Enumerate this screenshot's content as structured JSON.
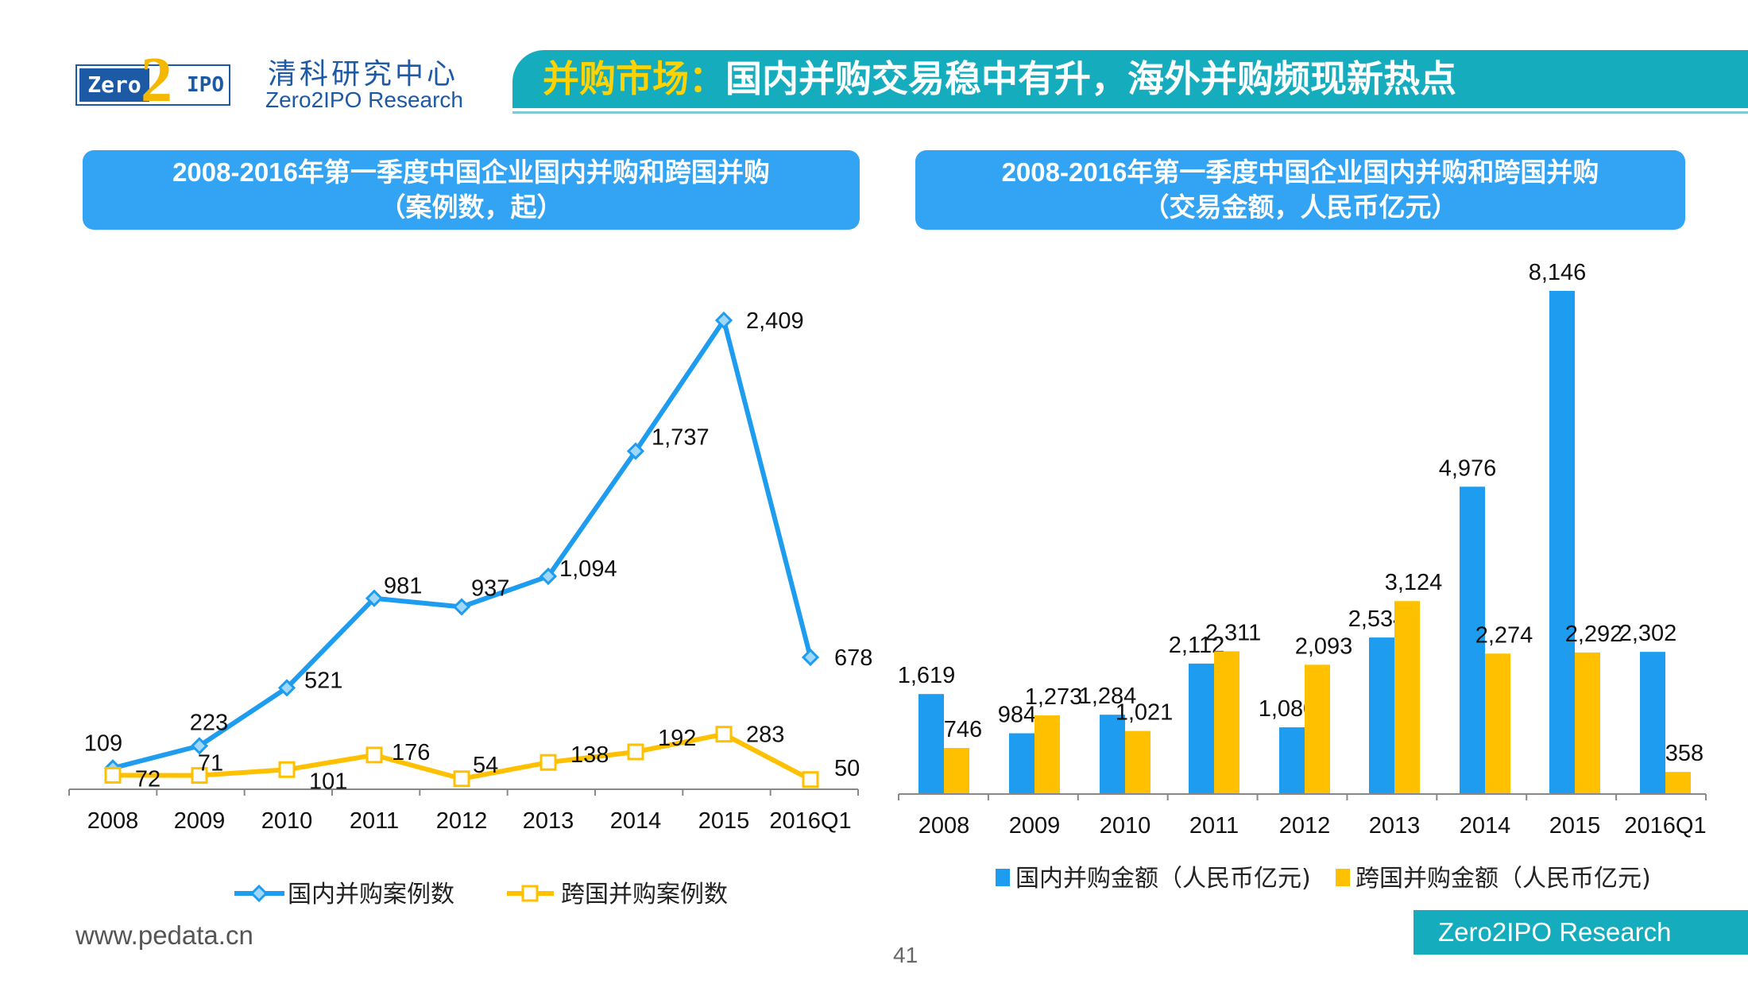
{
  "logo": {
    "left_text": "Zero",
    "digit": "2",
    "right_text": "IPO",
    "cn_name": "清科研究中心",
    "en_name": "Zero2IPO Research"
  },
  "banner": {
    "highlight": "并购市场：",
    "rest": "国内并购交易稳中有升，海外并购频现新热点"
  },
  "footer": {
    "site": "www.pedata.cn",
    "page": "41",
    "brand": "Zero2IPO Research"
  },
  "colors": {
    "banner": "#15adbe",
    "header": "#33a3f4",
    "blue": "#1e9cef",
    "yellow": "#ffc000"
  },
  "chart_data": [
    {
      "type": "line",
      "title_line1": "2008-2016年第一季度中国企业国内并购和跨国并购",
      "title_line2": "（案例数，起）",
      "categories": [
        "2008",
        "2009",
        "2010",
        "2011",
        "2012",
        "2013",
        "2014",
        "2015",
        "2016Q1"
      ],
      "series": [
        {
          "name": "国内并购案例数",
          "color": "#1e9cef",
          "marker": "diamond",
          "values": [
            109,
            223,
            521,
            981,
            937,
            1094,
            1737,
            2409,
            678
          ],
          "labels": [
            "109",
            "223",
            "521",
            "981",
            "937",
            "1,094",
            "1,737",
            "2,409",
            "678"
          ]
        },
        {
          "name": "跨国并购案例数",
          "color": "#ffc000",
          "marker": "square",
          "values": [
            72,
            71,
            101,
            176,
            54,
            138,
            192,
            283,
            50
          ],
          "labels": [
            "72",
            "71",
            "101",
            "176",
            "54",
            "138",
            "192",
            "283",
            "50"
          ]
        }
      ],
      "ylim": [
        0,
        2409
      ],
      "grid": false,
      "legend": "bottom"
    },
    {
      "type": "bar",
      "title_line1": "2008-2016年第一季度中国企业国内并购和跨国并购",
      "title_line2": "（交易金额，人民币亿元）",
      "categories": [
        "2008",
        "2009",
        "2010",
        "2011",
        "2012",
        "2013",
        "2014",
        "2015",
        "2016Q1"
      ],
      "series": [
        {
          "name": "国内并购金额（人民币亿元)",
          "color": "#1e9cef",
          "values": [
            1619,
            984,
            1284,
            2112,
            1080,
            2534,
            4976,
            8146,
            2302
          ],
          "labels": [
            "1,619",
            "984",
            "1,284",
            "2,112",
            "1,080",
            "2,534",
            "4,976",
            "8,146",
            "2,302"
          ]
        },
        {
          "name": "跨国并购金额（人民币亿元)",
          "color": "#ffc000",
          "values": [
            746,
            1273,
            1021,
            2311,
            2093,
            3124,
            2274,
            2292,
            358
          ],
          "labels": [
            "746",
            "1,273",
            "1,021",
            "2,311",
            "2,093",
            "3,124",
            "2,274",
            "2,292",
            "358"
          ]
        }
      ],
      "ylim": [
        0,
        8146
      ],
      "grid": false,
      "legend": "bottom"
    }
  ]
}
